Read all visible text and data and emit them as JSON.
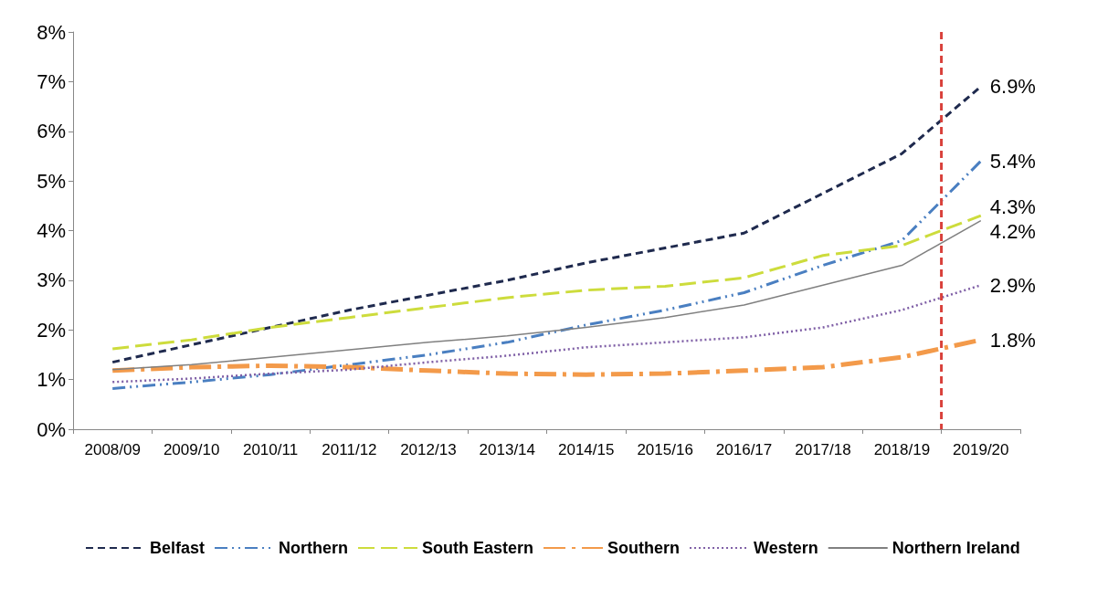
{
  "chart_data": {
    "type": "line",
    "categories": [
      "2008/09",
      "2009/10",
      "2010/11",
      "2011/12",
      "2012/13",
      "2013/14",
      "2014/15",
      "2015/16",
      "2016/17",
      "2017/18",
      "2018/19",
      "2019/20"
    ],
    "ylim": [
      0,
      8
    ],
    "yticks": [
      {
        "value": 0,
        "label": "0%"
      },
      {
        "value": 1,
        "label": "1%"
      },
      {
        "value": 2,
        "label": "2%"
      },
      {
        "value": 3,
        "label": "3%"
      },
      {
        "value": 4,
        "label": "4%"
      },
      {
        "value": 5,
        "label": "5%"
      },
      {
        "value": 6,
        "label": "6%"
      },
      {
        "value": 7,
        "label": "7%"
      },
      {
        "value": 8,
        "label": "8%"
      }
    ],
    "ref_lines": [
      {
        "axis": "x",
        "value": "2019/20",
        "color": "#d9413b",
        "line_style": "dashed"
      }
    ],
    "grid": false,
    "legend": "bottom",
    "marker": "none",
    "series": [
      {
        "name": "Belfast",
        "color": "#1f2a4e",
        "line_style": "dashed",
        "values": [
          1.35,
          1.7,
          2.05,
          2.4,
          2.7,
          3.0,
          3.35,
          3.65,
          3.95,
          4.75,
          5.55,
          6.9
        ],
        "value_labels": [
          null,
          null,
          null,
          null,
          null,
          null,
          null,
          null,
          null,
          null,
          null,
          "6.9%"
        ]
      },
      {
        "name": "Northern",
        "color": "#4a7fc1",
        "line_style": "dashdot",
        "values": [
          0.82,
          0.95,
          1.1,
          1.3,
          1.5,
          1.75,
          2.1,
          2.4,
          2.75,
          3.3,
          3.8,
          5.4
        ],
        "value_labels": [
          null,
          null,
          null,
          null,
          null,
          null,
          null,
          null,
          null,
          null,
          null,
          "5.4%"
        ]
      },
      {
        "name": "South Eastern",
        "color": "#cddc3c",
        "line_style": "longdash",
        "values": [
          1.62,
          1.8,
          2.05,
          2.25,
          2.45,
          2.65,
          2.8,
          2.88,
          3.05,
          3.5,
          3.7,
          4.3
        ],
        "value_labels": [
          null,
          null,
          null,
          null,
          null,
          null,
          null,
          null,
          null,
          null,
          null,
          "4.3%"
        ]
      },
      {
        "name": "Southern",
        "color": "#f39a4a",
        "line_style": "longdashdot",
        "values": [
          1.18,
          1.25,
          1.28,
          1.25,
          1.18,
          1.12,
          1.1,
          1.12,
          1.18,
          1.25,
          1.45,
          1.8
        ],
        "value_labels": [
          null,
          null,
          null,
          null,
          null,
          null,
          null,
          null,
          null,
          null,
          null,
          "1.8%"
        ]
      },
      {
        "name": "Western",
        "color": "#7f5fa6",
        "line_style": "dotted",
        "values": [
          0.95,
          1.02,
          1.12,
          1.2,
          1.35,
          1.48,
          1.65,
          1.75,
          1.85,
          2.05,
          2.4,
          2.9
        ],
        "value_labels": [
          null,
          null,
          null,
          null,
          null,
          null,
          null,
          null,
          null,
          null,
          null,
          "2.9%"
        ]
      },
      {
        "name": "Northern Ireland",
        "color": "#808080",
        "line_style": "solid",
        "values": [
          1.2,
          1.3,
          1.45,
          1.6,
          1.75,
          1.88,
          2.05,
          2.25,
          2.5,
          2.9,
          3.3,
          4.2
        ],
        "value_labels": [
          null,
          null,
          null,
          null,
          null,
          null,
          null,
          null,
          null,
          null,
          null,
          "4.2%"
        ]
      }
    ]
  }
}
